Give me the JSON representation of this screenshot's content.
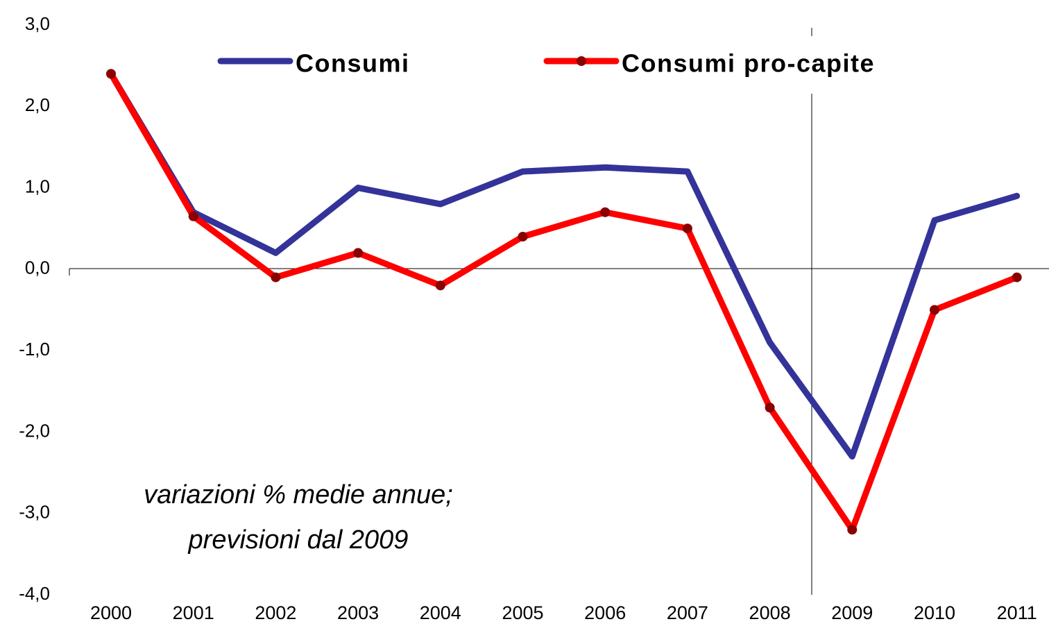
{
  "chart_data": {
    "type": "line",
    "annotation": [
      "variazioni % medie annue;",
      "previsioni dal 2009"
    ],
    "categories": [
      "2000",
      "2001",
      "2002",
      "2003",
      "2004",
      "2005",
      "2006",
      "2007",
      "2008",
      "2009",
      "2010",
      "2011"
    ],
    "series": [
      {
        "name": "Consumi",
        "color": "#333399",
        "values": [
          2.4,
          0.7,
          0.2,
          1.0,
          0.8,
          1.2,
          1.25,
          1.2,
          -0.9,
          -2.3,
          0.6,
          0.9
        ]
      },
      {
        "name": "Consumi pro-capite",
        "color": "#ff0000",
        "marker_color": "#8b0000",
        "values": [
          2.4,
          0.65,
          -0.1,
          0.2,
          -0.2,
          0.4,
          0.7,
          0.5,
          -1.7,
          -3.2,
          -0.5,
          -0.1
        ]
      }
    ],
    "ylim": [
      -4,
      3
    ],
    "yticks": [
      {
        "value": 3,
        "label": "3,0"
      },
      {
        "value": 2,
        "label": "2,0"
      },
      {
        "value": 1,
        "label": "1,0"
      },
      {
        "value": 0,
        "label": "0,0"
      },
      {
        "value": -1,
        "label": "-1,0"
      },
      {
        "value": -2,
        "label": "-2,0"
      },
      {
        "value": -3,
        "label": "-3,0"
      },
      {
        "value": -4,
        "label": "-4,0"
      }
    ],
    "grid": false
  }
}
